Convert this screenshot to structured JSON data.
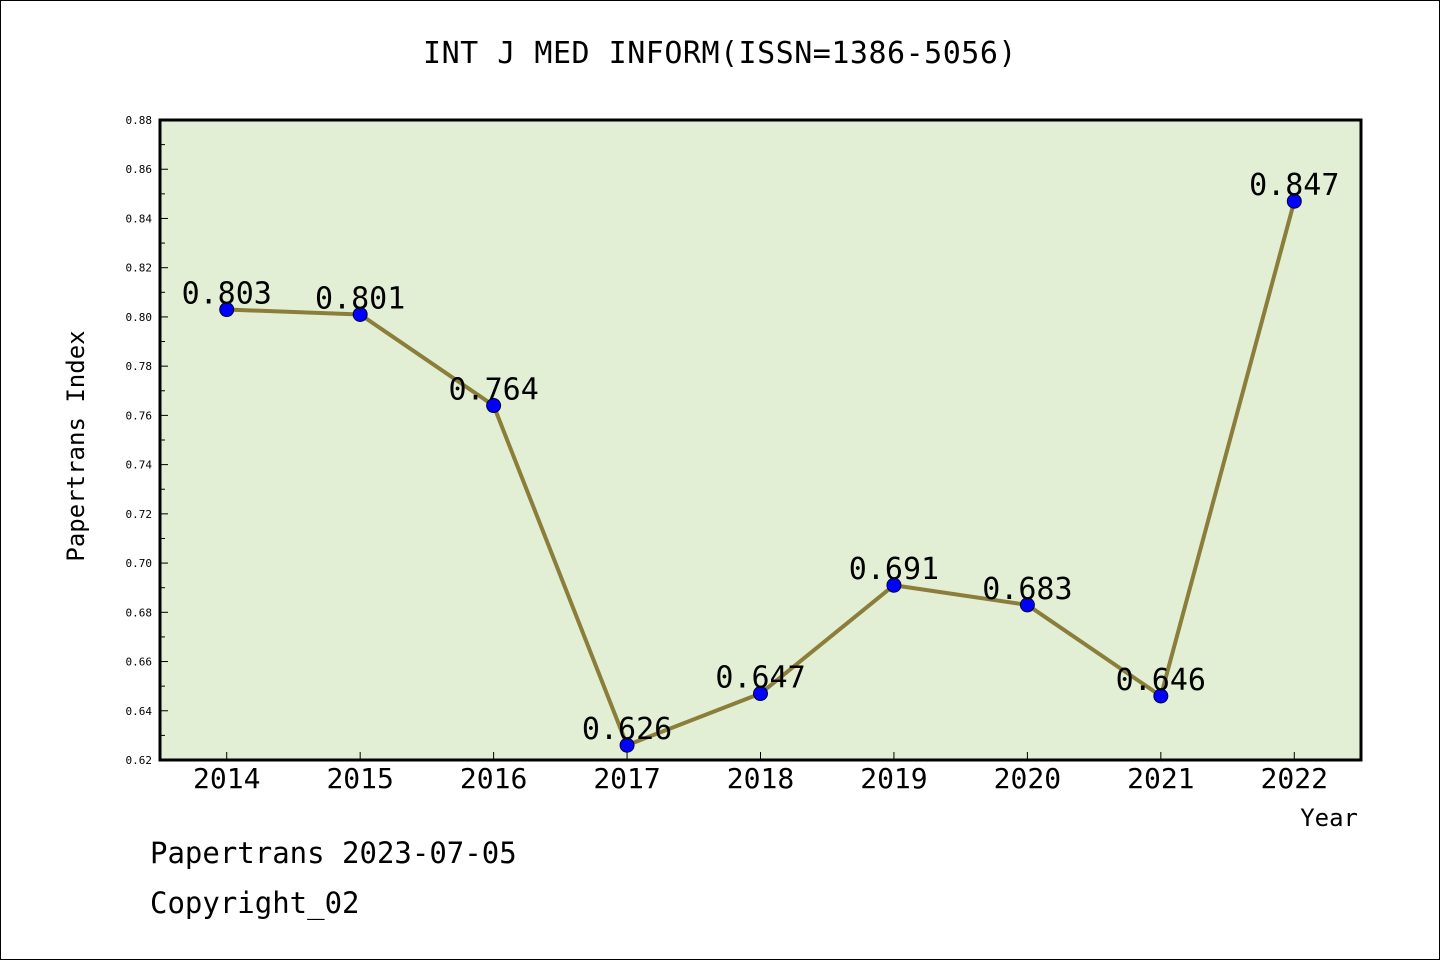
{
  "chart_data": {
    "type": "line",
    "title": "INT J MED INFORM(ISSN=1386-5056)",
    "xlabel": "Year",
    "ylabel": "Papertrans Index",
    "categories": [
      "2014",
      "2015",
      "2016",
      "2017",
      "2018",
      "2019",
      "2020",
      "2021",
      "2022"
    ],
    "values": [
      0.803,
      0.801,
      0.764,
      0.626,
      0.647,
      0.691,
      0.683,
      0.646,
      0.847
    ],
    "data_labels": [
      "0.803",
      "0.801",
      "0.764",
      "0.626",
      "0.647",
      "0.691",
      "0.683",
      "0.646",
      "0.847"
    ],
    "ylim": [
      0.62,
      0.88
    ],
    "yticks": [
      "0.62",
      "0.64",
      "0.66",
      "0.68",
      "0.70",
      "0.72",
      "0.74",
      "0.76",
      "0.78",
      "0.80",
      "0.82",
      "0.84",
      "0.86",
      "0.88"
    ],
    "grid": false,
    "legend": "none",
    "colors": {
      "plot_background": "#e2efd4",
      "line": "#8b7d3a",
      "marker": "#0000ff"
    }
  },
  "footer": {
    "date_text": "Papertrans 2023-07-05",
    "copyright_text": "Copyright_02"
  }
}
